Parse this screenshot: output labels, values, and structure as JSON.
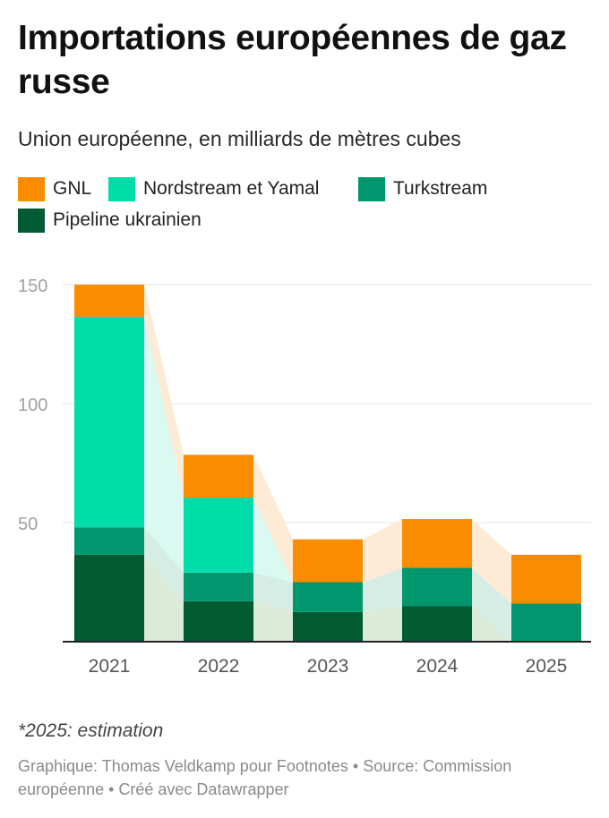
{
  "header": {
    "title": "Importations européennes de gaz russe",
    "subtitle": "Union européenne, en milliards de mètres cubes"
  },
  "legend": [
    {
      "label": "GNL",
      "color": "#fa8c00"
    },
    {
      "label": "Nordstream et Yamal",
      "color": "#00dcaa"
    },
    {
      "label": "Turkstream",
      "color": "#00966e"
    },
    {
      "label": "Pipeline ukrainien",
      "color": "#005a32"
    }
  ],
  "chart_data": {
    "type": "bar",
    "stacked": true,
    "categories": [
      "2021",
      "2022",
      "2023",
      "2024",
      "2025"
    ],
    "series": [
      {
        "name": "Pipeline ukrainien",
        "color": "#005a32",
        "band_color": "#dcead8",
        "values": [
          36.5,
          17,
          12.5,
          15,
          0
        ]
      },
      {
        "name": "Turkstream",
        "color": "#00966e",
        "band_color": "#d6ede6",
        "values": [
          11.5,
          12,
          12.5,
          16,
          16
        ]
      },
      {
        "name": "Nordstream et Yamal",
        "color": "#00dcaa",
        "band_color": "#d9f9f1",
        "values": [
          88.5,
          31.5,
          0,
          0,
          0
        ]
      },
      {
        "name": "GNL",
        "color": "#fa8c00",
        "band_color": "#fdebd6",
        "values": [
          13.5,
          18,
          18,
          20.5,
          20.5
        ]
      }
    ],
    "ylim": [
      0,
      150
    ],
    "yticks": [
      50,
      100,
      150
    ],
    "grid": true,
    "title": "Importations européennes de gaz russe",
    "xlabel": "",
    "ylabel": ""
  },
  "footer": {
    "note": "*2025: estimation",
    "source": "Graphique: Thomas Veldkamp pour Footnotes • Source: Commission européenne • Créé avec Datawrapper"
  }
}
